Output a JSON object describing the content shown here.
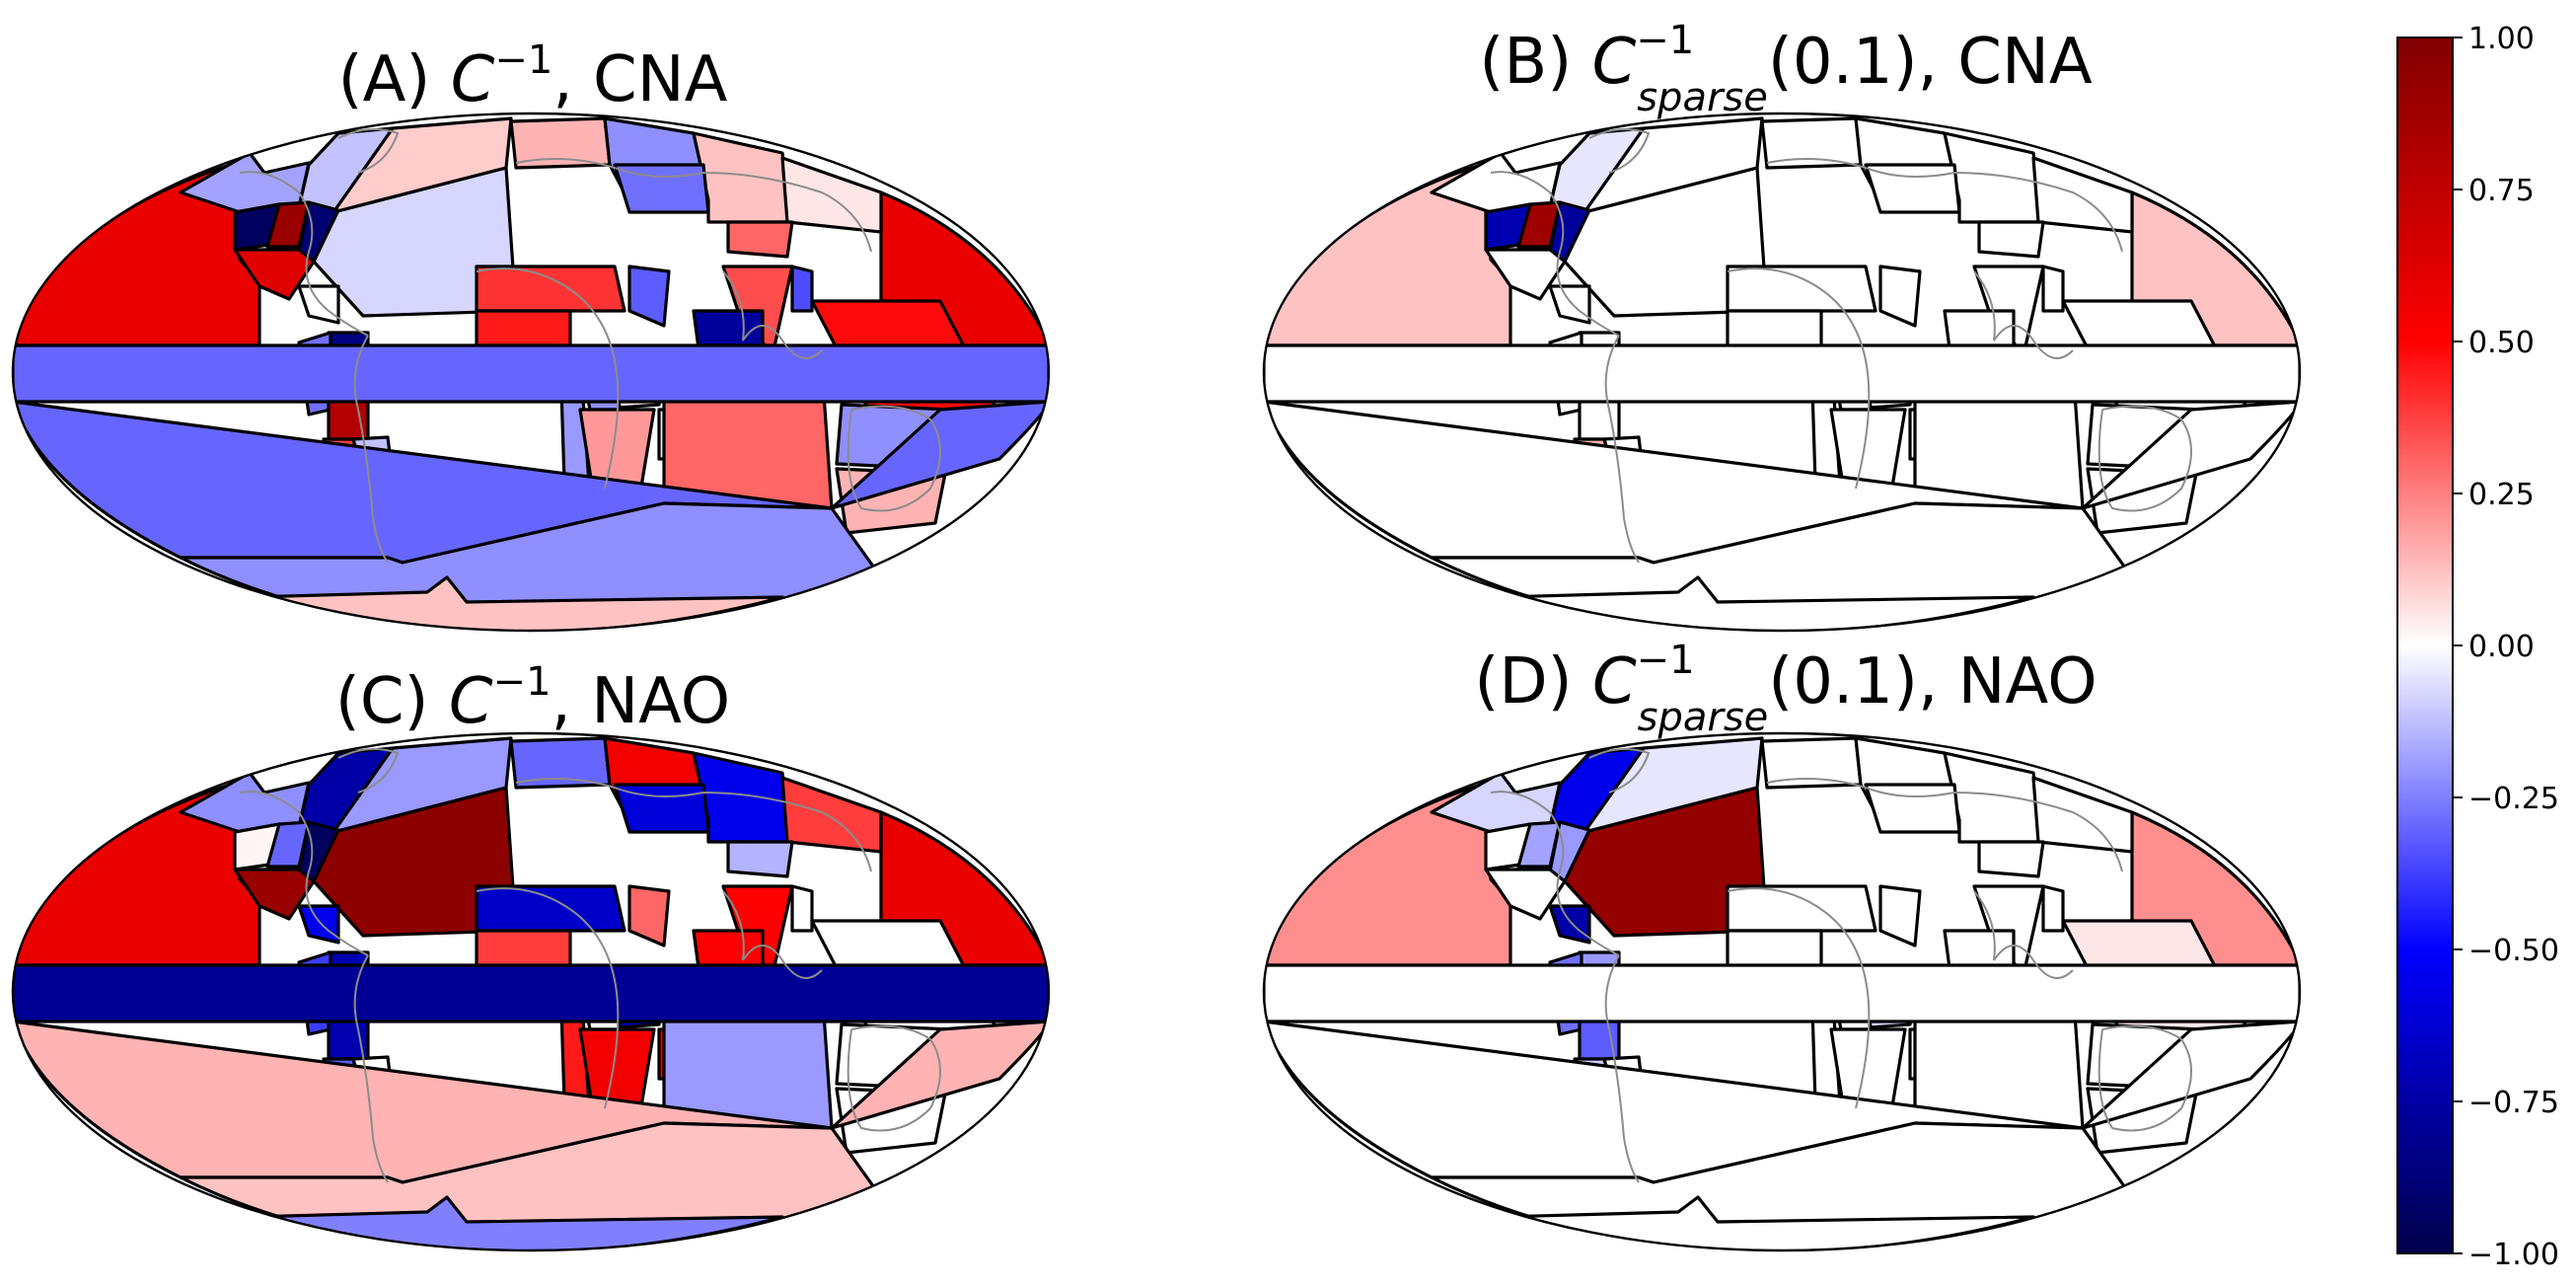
{
  "figure": {
    "panels": [
      {
        "id": "A",
        "title_prefix": "(A) ",
        "title_symbol": "C",
        "title_sup": "−1",
        "title_sub": "",
        "title_suffix": ", CNA",
        "regions": {
          "pacific_north": 0.58,
          "pacific_east_north": 0.58,
          "atlantic_north": -0.08,
          "alaska": -0.18,
          "canada_east": -0.12,
          "greenland": 0.1,
          "na_nw": -0.95,
          "na_central": 0.9,
          "na_east": -0.9,
          "na_west": 0.62,
          "central_america": 0.0,
          "south_america_n": -0.85,
          "amazon": -0.28,
          "south_america_e": 0.8,
          "south_america_w": 0.38,
          "south_america_s": -0.12,
          "europe_n": 0.15,
          "europe_c": -0.22,
          "europe_e": 0.12,
          "asia_n_w": -0.28,
          "asia_n_e": 0.05,
          "asia_ne": 0.3,
          "mediterranean": 0.4,
          "sahara": 0.45,
          "middle_east": -0.32,
          "india": 0.35,
          "china": -0.78,
          "east_asia": -0.35,
          "se_asia": 0.48,
          "africa_w": -0.2,
          "africa_c": -0.22,
          "africa_e": 0.05,
          "africa_s": 0.2,
          "madagascar": -0.05,
          "indian_ocean": 0.3,
          "australia_n": -0.22,
          "australia_s": 0.15,
          "tropics_band": -0.3,
          "south_band": -0.3,
          "southern_ocean": -0.22,
          "antarctica": 0.12
        }
      },
      {
        "id": "B",
        "title_prefix": "(B) ",
        "title_symbol": "C",
        "title_sup": "−1",
        "title_sub": "sparse",
        "title_suffix": "(0.1), CNA",
        "regions": {
          "pacific_north": 0.12,
          "pacific_east_north": 0.12,
          "atlantic_north": 0.0,
          "alaska": 0.0,
          "canada_east": -0.05,
          "greenland": 0.0,
          "na_nw": -0.72,
          "na_central": 0.88,
          "na_east": -0.78,
          "na_west": 0.0,
          "central_america": 0.0,
          "south_america_n": 0.0,
          "amazon": 0.0,
          "south_america_e": 0.0,
          "south_america_w": 0.15,
          "south_america_s": 0.0,
          "europe_n": 0.0,
          "europe_c": 0.0,
          "europe_e": 0.0,
          "asia_n_w": 0.0,
          "asia_n_e": 0.0,
          "asia_ne": 0.0,
          "mediterranean": 0.0,
          "sahara": 0.0,
          "middle_east": 0.0,
          "india": 0.0,
          "china": 0.0,
          "east_asia": 0.0,
          "se_asia": 0.0,
          "africa_w": 0.0,
          "africa_c": 0.0,
          "africa_e": 0.0,
          "africa_s": 0.0,
          "madagascar": 0.0,
          "indian_ocean": 0.0,
          "australia_n": 0.0,
          "australia_s": 0.0,
          "tropics_band": 0.0,
          "south_band": 0.0,
          "southern_ocean": 0.0,
          "antarctica": 0.0
        }
      },
      {
        "id": "C",
        "title_prefix": "(C) ",
        "title_symbol": "C",
        "title_sup": "−1",
        "title_sub": "",
        "title_suffix": ", NAO",
        "regions": {
          "pacific_north": 0.58,
          "pacific_east_north": 0.58,
          "atlantic_north": 0.95,
          "alaska": -0.22,
          "canada_east": -0.75,
          "greenland": -0.2,
          "na_nw": 0.02,
          "na_central": -0.3,
          "na_east": -0.95,
          "na_west": 0.9,
          "central_america": -0.55,
          "south_america_n": -0.72,
          "amazon": -0.38,
          "south_america_e": -0.72,
          "south_america_w": -0.32,
          "south_america_s": 0.0,
          "europe_n": -0.3,
          "europe_c": 0.55,
          "europe_e": -0.55,
          "asia_n_w": -0.6,
          "asia_n_e": 0.38,
          "asia_ne": -0.15,
          "mediterranean": -0.65,
          "sahara": 0.38,
          "middle_east": 0.3,
          "india": 0.5,
          "china": 0.52,
          "east_asia": 0.0,
          "se_asia": 0.0,
          "africa_w": 0.45,
          "africa_c": 0.0,
          "africa_e": -0.72,
          "africa_s": 0.55,
          "madagascar": 0.6,
          "indian_ocean": -0.2,
          "australia_n": 0.0,
          "australia_s": 0.0,
          "tropics_band": -0.8,
          "south_band": 0.15,
          "southern_ocean": 0.12,
          "antarctica": -0.25
        }
      },
      {
        "id": "D",
        "title_prefix": "(D) ",
        "title_symbol": "C",
        "title_sup": "−1",
        "title_sub": "sparse",
        "title_suffix": "(0.1), NAO",
        "regions": {
          "pacific_north": 0.22,
          "pacific_east_north": 0.22,
          "atlantic_north": 0.92,
          "alaska": -0.08,
          "canada_east": -0.55,
          "greenland": -0.05,
          "na_nw": 0.0,
          "na_central": -0.18,
          "na_east": -0.2,
          "na_west": 0.0,
          "central_america": -0.75,
          "south_america_n": -0.2,
          "amazon": -0.28,
          "south_america_e": -0.32,
          "south_america_w": -0.1,
          "south_america_s": 0.0,
          "europe_n": 0.0,
          "europe_c": 0.0,
          "europe_e": 0.0,
          "asia_n_w": 0.0,
          "asia_n_e": 0.0,
          "asia_ne": 0.0,
          "mediterranean": 0.0,
          "sahara": 0.0,
          "middle_east": 0.0,
          "india": 0.0,
          "china": 0.0,
          "east_asia": 0.0,
          "se_asia": 0.05,
          "africa_w": 0.0,
          "africa_c": 0.0,
          "africa_e": -0.08,
          "africa_s": 0.0,
          "madagascar": 0.0,
          "indian_ocean": 0.0,
          "australia_n": 0.0,
          "australia_s": 0.0,
          "tropics_band": 0.0,
          "south_band": 0.0,
          "southern_ocean": 0.0,
          "antarctica": 0.0
        }
      }
    ],
    "colorbar": {
      "colormap": "seismic",
      "colors": {
        "low": "#00004c",
        "mid_low": "#0000ff",
        "center": "#ffffff",
        "mid_high": "#ff0000",
        "high": "#800000"
      },
      "range": [
        -1.0,
        1.0
      ],
      "ticks": [
        {
          "value": 1.0,
          "label": "1.00"
        },
        {
          "value": 0.75,
          "label": "0.75"
        },
        {
          "value": 0.5,
          "label": "0.50"
        },
        {
          "value": 0.25,
          "label": "0.25"
        },
        {
          "value": 0.0,
          "label": "0.00"
        },
        {
          "value": -0.25,
          "label": "−0.25"
        },
        {
          "value": -0.5,
          "label": "−0.50"
        },
        {
          "value": -0.75,
          "label": "−0.75"
        },
        {
          "value": -1.0,
          "label": "−1.00"
        }
      ]
    }
  }
}
